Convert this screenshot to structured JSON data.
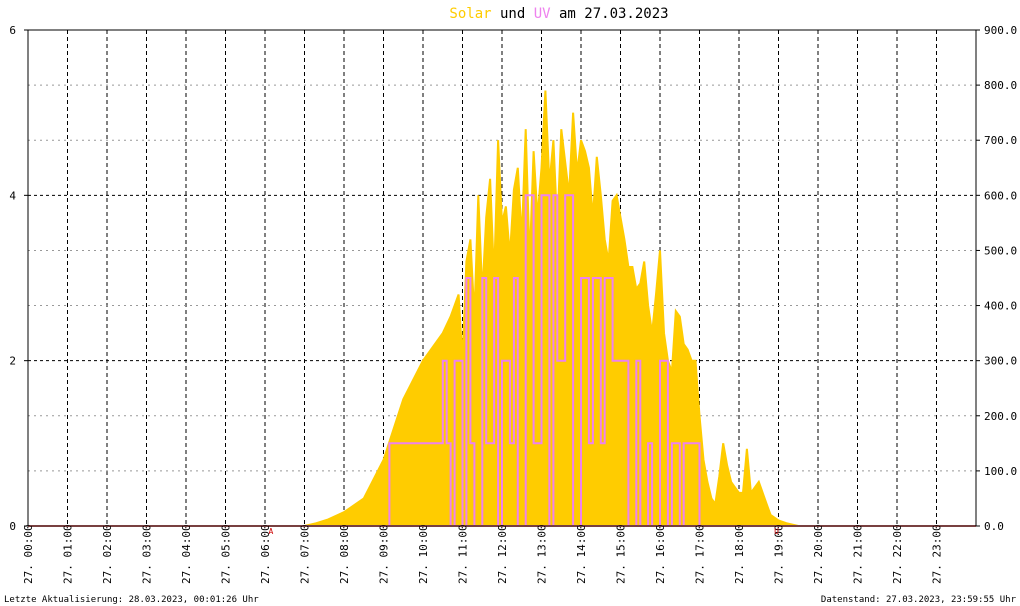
{
  "chart_data": {
    "type": "area",
    "title_parts": [
      {
        "text": "Solar",
        "color": "#ffcc00"
      },
      {
        "text": " und ",
        "color": "#000000"
      },
      {
        "text": "UV",
        "color": "#ee82ee"
      },
      {
        "text": " am 27.03.2023",
        "color": "#000000"
      }
    ],
    "x_ticks": [
      "27. 00:00",
      "27. 01:00",
      "27. 02:00",
      "27. 03:00",
      "27. 04:00",
      "27. 05:00",
      "27. 06:00",
      "27. 07:00",
      "27. 08:00",
      "27. 09:00",
      "27. 10:00",
      "27. 11:00",
      "27. 12:00",
      "27. 13:00",
      "27. 14:00",
      "27. 15:00",
      "27. 16:00",
      "27. 17:00",
      "27. 18:00",
      "27. 19:00",
      "27. 20:00",
      "27. 21:00",
      "27. 22:00",
      "27. 23:00"
    ],
    "y_left": {
      "range": [
        0,
        6
      ],
      "ticks": [
        "0",
        "2",
        "4",
        "6"
      ],
      "tick_values": [
        0,
        2,
        4,
        6
      ]
    },
    "y_right": {
      "range": [
        0,
        900
      ],
      "ticks": [
        "0.0",
        "100.0",
        "200.0",
        "300.0",
        "400.0",
        "500.0",
        "600.0",
        "700.0",
        "800.0",
        "900.0"
      ],
      "tick_values": [
        0,
        100,
        200,
        300,
        400,
        500,
        600,
        700,
        800,
        900
      ]
    },
    "grid": true,
    "series": [
      {
        "name": "Solar",
        "color": "#ffcc00",
        "axis": "right",
        "x_hours": [
          0,
          7.0,
          7.3,
          7.6,
          8.0,
          8.5,
          9.0,
          9.5,
          10.0,
          10.3,
          10.5,
          10.7,
          10.9,
          11.0,
          11.1,
          11.2,
          11.3,
          11.4,
          11.5,
          11.6,
          11.7,
          11.8,
          11.9,
          12.0,
          12.1,
          12.2,
          12.3,
          12.4,
          12.5,
          12.6,
          12.7,
          12.8,
          12.9,
          13.0,
          13.1,
          13.2,
          13.3,
          13.4,
          13.5,
          13.6,
          13.7,
          13.8,
          13.9,
          14.0,
          14.1,
          14.2,
          14.3,
          14.4,
          14.5,
          14.6,
          14.7,
          14.8,
          14.9,
          15.0,
          15.1,
          15.2,
          15.3,
          15.4,
          15.5,
          15.6,
          15.7,
          15.8,
          15.9,
          16.0,
          16.1,
          16.2,
          16.3,
          16.4,
          16.5,
          16.6,
          16.7,
          16.8,
          16.9,
          17.0,
          17.1,
          17.2,
          17.3,
          17.4,
          17.5,
          17.6,
          17.7,
          17.8,
          17.9,
          18.0,
          18.1,
          18.2,
          18.3,
          18.4,
          18.5,
          18.6,
          18.7,
          18.8,
          19.0,
          19.2,
          19.5,
          20.0,
          24.0
        ],
        "values": [
          0,
          0,
          5,
          12,
          25,
          50,
          120,
          230,
          300,
          330,
          350,
          380,
          420,
          300,
          480,
          520,
          380,
          600,
          420,
          560,
          630,
          450,
          700,
          550,
          580,
          490,
          610,
          650,
          520,
          720,
          480,
          680,
          560,
          650,
          790,
          620,
          700,
          540,
          720,
          660,
          600,
          750,
          640,
          700,
          680,
          650,
          560,
          670,
          600,
          520,
          480,
          590,
          600,
          560,
          520,
          470,
          470,
          430,
          440,
          480,
          400,
          350,
          420,
          500,
          350,
          300,
          280,
          390,
          380,
          330,
          320,
          300,
          300,
          200,
          120,
          80,
          50,
          40,
          90,
          150,
          110,
          80,
          70,
          60,
          60,
          140,
          60,
          70,
          80,
          60,
          40,
          20,
          10,
          5,
          0,
          0,
          0
        ]
      },
      {
        "name": "UV",
        "color": "#ee82ee",
        "axis": "left",
        "x_hours": [
          0,
          9.15,
          9.15,
          10.5,
          10.5,
          10.6,
          10.6,
          10.7,
          10.7,
          10.8,
          10.8,
          11.0,
          11.0,
          11.1,
          11.1,
          11.2,
          11.2,
          11.3,
          11.3,
          11.5,
          11.5,
          11.6,
          11.6,
          11.8,
          11.8,
          11.9,
          11.9,
          12.0,
          12.0,
          12.2,
          12.2,
          12.3,
          12.3,
          12.4,
          12.4,
          12.6,
          12.6,
          12.8,
          12.8,
          13.0,
          13.0,
          13.2,
          13.2,
          13.3,
          13.3,
          13.4,
          13.4,
          13.6,
          13.6,
          13.8,
          13.8,
          14.0,
          14.0,
          14.2,
          14.2,
          14.3,
          14.3,
          14.5,
          14.5,
          14.6,
          14.6,
          14.8,
          14.8,
          15.2,
          15.2,
          15.4,
          15.4,
          15.5,
          15.5,
          15.7,
          15.7,
          15.8,
          15.8,
          16.0,
          16.0,
          16.2,
          16.2,
          16.3,
          16.3,
          16.5,
          16.5,
          16.6,
          16.6,
          17.0,
          17.0,
          17.1,
          17.1,
          24.0
        ],
        "values": [
          0,
          0,
          1,
          1,
          2,
          2,
          1,
          1,
          0,
          0,
          2,
          2,
          0,
          0,
          3,
          3,
          1,
          1,
          0,
          0,
          3,
          3,
          1,
          1,
          3,
          3,
          0,
          0,
          2,
          2,
          1,
          1,
          3,
          3,
          0,
          0,
          4,
          4,
          1,
          1,
          4,
          4,
          0,
          0,
          4,
          4,
          2,
          2,
          4,
          4,
          0,
          0,
          3,
          3,
          1,
          1,
          3,
          3,
          1,
          1,
          3,
          3,
          2,
          2,
          0,
          0,
          2,
          2,
          0,
          0,
          1,
          1,
          0,
          0,
          2,
          2,
          0,
          0,
          1,
          1,
          0,
          0,
          1,
          1,
          0,
          0,
          0,
          0
        ]
      }
    ],
    "markers": [
      {
        "text": "A",
        "x_hour": 6.15
      },
      {
        "text": "U",
        "x_hour": 18.95
      }
    ],
    "footer_left": "Letzte Aktualisierung: 28.03.2023, 00:01:26 Uhr",
    "footer_right": "Datenstand: 27.03.2023, 23:59:55 Uhr"
  }
}
